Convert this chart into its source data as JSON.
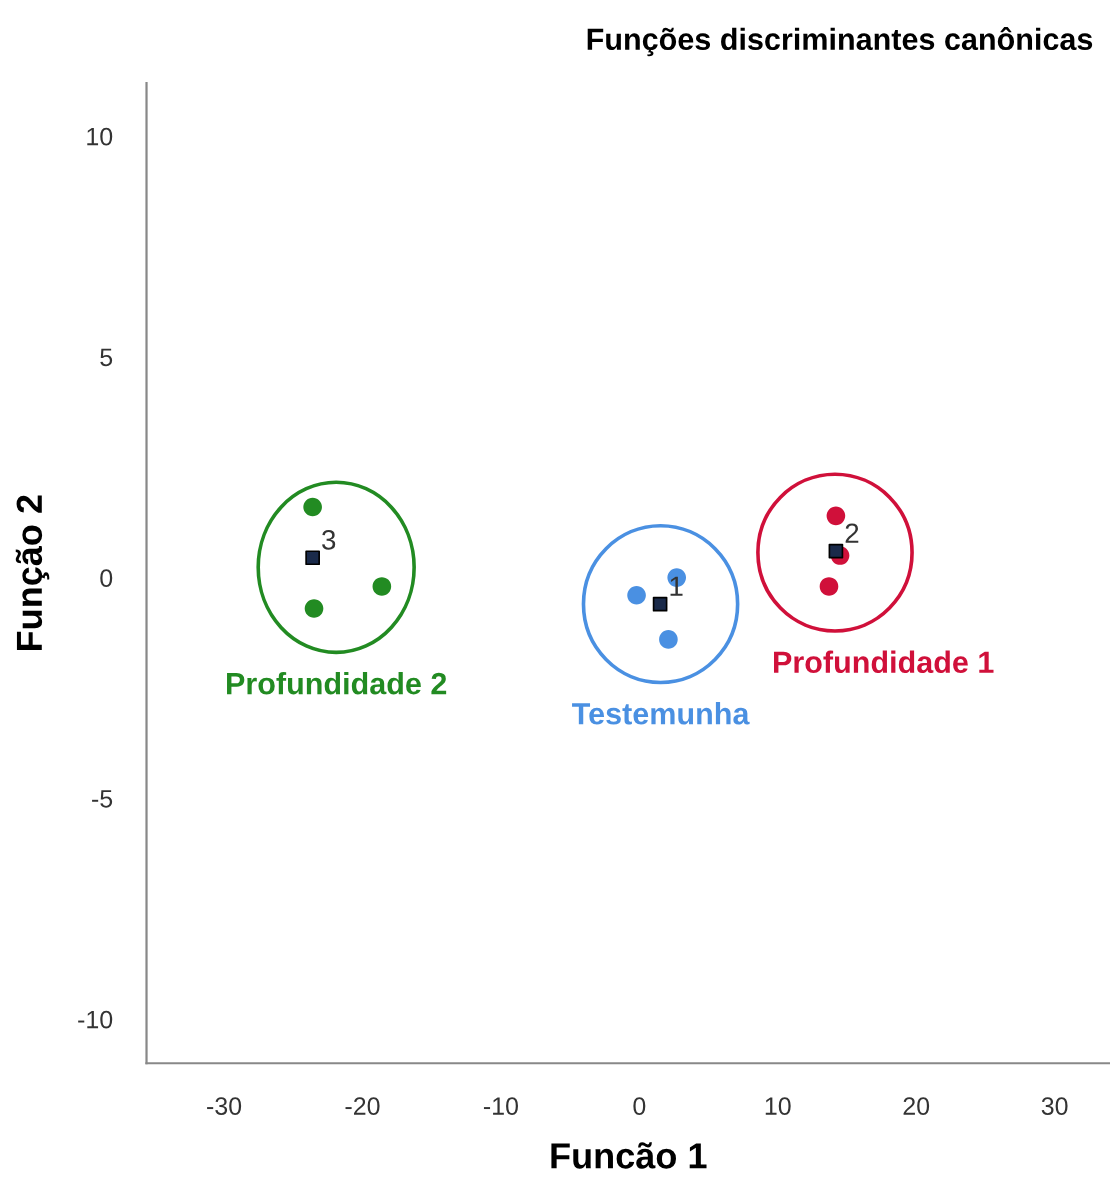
{
  "chart_data": {
    "type": "scatter",
    "title": "Funções discriminantes canônicas",
    "xlabel": "Funcão 1",
    "ylabel": "Função 2",
    "series": [
      {
        "name": "Testemunha",
        "color": "#4a90e2",
        "x": [
          -0.2,
          2.7,
          2.1
        ],
        "values": [
          -0.4,
          0.0,
          -1.4
        ]
      },
      {
        "name": "Profundidade 1",
        "color": "#d0103a",
        "x": [
          14.2,
          14.5,
          13.7
        ],
        "values": [
          1.4,
          0.5,
          -0.2
        ]
      },
      {
        "name": "Profundidade 2",
        "color": "#228b22",
        "x": [
          -23.6,
          -23.5,
          -18.6
        ],
        "values": [
          1.6,
          -0.7,
          -0.2
        ]
      },
      {
        "color": "#1a2a4a",
        "marker": "square",
        "x": [
          1.5,
          14.2,
          -23.6
        ],
        "values": [
          -0.6,
          0.6,
          0.45
        ]
      }
    ],
    "annotations": [
      {
        "text": "1",
        "x": 1.5,
        "y": -0.6
      },
      {
        "text": "2",
        "x": 14.2,
        "y": 0.6
      },
      {
        "text": "3",
        "x": -23.6,
        "y": 0.45
      }
    ],
    "xlim": [
      -35.6,
      34
    ],
    "ylim": [
      -11,
      11.2
    ],
    "xticks": [
      -30,
      -20,
      -10,
      0,
      10,
      20,
      30
    ],
    "yticks": [
      -10,
      -5,
      0,
      5,
      10
    ],
    "marker": "circle",
    "grid": false,
    "legend": false
  }
}
